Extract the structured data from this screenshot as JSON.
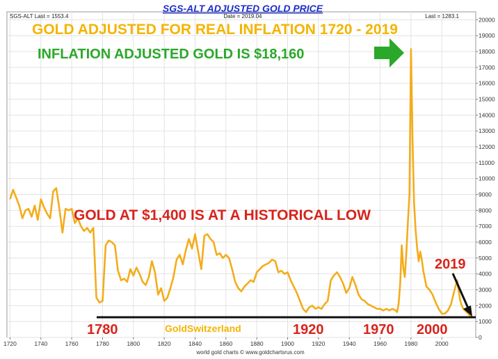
{
  "header": {
    "title": "SGS-ALT ADJUSTED  GOLD PRICE",
    "left_info": "SGS-ALT Last = 1553.4",
    "center_info": "Date = 2019.04",
    "right_info": "Last = 1283.1"
  },
  "annotations": {
    "headline": "GOLD ADJUSTED FOR REAL INFLATION  1720 - 2019",
    "peak_note": "INFLATION ADJUSTED GOLD IS $18,160",
    "low_note": "GOLD AT $1,400 IS AT A HISTORICAL LOW",
    "year_2019": "2019",
    "brand": "GoldSwitzerland",
    "years": [
      "1780",
      "1920",
      "1970",
      "2000"
    ]
  },
  "footer": "world gold charts © www.goldchartsrus.com",
  "colors": {
    "line": "#f4ac1b",
    "title": "#1c2ec9",
    "green": "#2aa82a",
    "red": "#d8231b",
    "baseline": "#111111"
  },
  "chart_data": {
    "type": "line",
    "title": "SGS-ALT ADJUSTED  GOLD PRICE",
    "xlabel": "",
    "ylabel": "",
    "xlim": [
      1718,
      2022
    ],
    "ylim": [
      0,
      20500
    ],
    "x_ticks": [
      1720,
      1740,
      1760,
      1780,
      1800,
      1820,
      1840,
      1860,
      1880,
      1900,
      1920,
      1940,
      1960,
      1980,
      2000
    ],
    "y_ticks": [
      0,
      1000,
      2000,
      3000,
      4000,
      5000,
      6000,
      7000,
      8000,
      9000,
      10000,
      11000,
      12000,
      13000,
      14000,
      15000,
      16000,
      17000,
      18000,
      19000,
      20000
    ],
    "y_axis_side": "right",
    "grid": true,
    "series": [
      {
        "x": [
          1720,
          1722,
          1724,
          1726,
          1728,
          1730,
          1732,
          1734,
          1736,
          1738,
          1740,
          1742,
          1744,
          1746,
          1748,
          1750,
          1752,
          1754,
          1756,
          1758,
          1760,
          1762,
          1764,
          1766,
          1768,
          1770,
          1772,
          1774,
          1776,
          1778,
          1780,
          1782,
          1784,
          1786,
          1788,
          1790,
          1792,
          1794,
          1796,
          1798,
          1800,
          1802,
          1804,
          1806,
          1808,
          1810,
          1812,
          1814,
          1816,
          1818,
          1820,
          1822,
          1824,
          1826,
          1828,
          1830,
          1832,
          1834,
          1836,
          1838,
          1840,
          1842,
          1844,
          1846,
          1848,
          1850,
          1852,
          1854,
          1856,
          1858,
          1860,
          1862,
          1864,
          1866,
          1868,
          1870,
          1872,
          1874,
          1876,
          1878,
          1880,
          1882,
          1884,
          1886,
          1888,
          1890,
          1892,
          1894,
          1896,
          1898,
          1900,
          1902,
          1904,
          1906,
          1908,
          1910,
          1912,
          1914,
          1916,
          1918,
          1920,
          1922,
          1924,
          1926,
          1928,
          1930,
          1932,
          1934,
          1936,
          1938,
          1940,
          1942,
          1944,
          1946,
          1948,
          1950,
          1952,
          1954,
          1956,
          1958,
          1960,
          1962,
          1964,
          1966,
          1968,
          1970,
          1971,
          1972,
          1973,
          1974,
          1975,
          1976,
          1977,
          1978,
          1979,
          1980,
          1981,
          1982,
          1983,
          1984,
          1985,
          1986,
          1987,
          1988,
          1990,
          1992,
          1994,
          1996,
          1998,
          2000,
          2002,
          2004,
          2006,
          2008,
          2010,
          2011,
          2012,
          2013,
          2014,
          2016,
          2018,
          2019
        ],
        "y": [
          8700,
          9300,
          8800,
          8300,
          7500,
          8000,
          8100,
          7600,
          8300,
          7400,
          8700,
          8200,
          7800,
          7500,
          9200,
          9400,
          8100,
          6600,
          8100,
          8000,
          8100,
          7200,
          7500,
          7000,
          6700,
          6900,
          6600,
          6900,
          2500,
          2200,
          2300,
          5800,
          6100,
          6000,
          5800,
          4200,
          3600,
          3700,
          3500,
          4300,
          3900,
          4400,
          4000,
          3500,
          3300,
          3800,
          4800,
          4100,
          2700,
          3100,
          2300,
          2500,
          3100,
          3800,
          4900,
          5200,
          4600,
          5500,
          6200,
          5600,
          6500,
          5400,
          4300,
          6400,
          6500,
          6200,
          6000,
          5200,
          5300,
          5000,
          5200,
          5000,
          4300,
          3500,
          3100,
          2900,
          3200,
          3400,
          3600,
          3500,
          4100,
          4300,
          4500,
          4600,
          4700,
          4900,
          4800,
          4100,
          4200,
          4000,
          4100,
          3600,
          3200,
          2800,
          2300,
          1800,
          1600,
          1900,
          2000,
          1800,
          1900,
          1800,
          2100,
          2300,
          3600,
          3900,
          4100,
          3800,
          3400,
          2800,
          3100,
          3800,
          3300,
          2700,
          2400,
          2300,
          2100,
          2000,
          1900,
          1800,
          1800,
          1700,
          1800,
          1700,
          1800,
          1700,
          1600,
          2100,
          3400,
          5800,
          4400,
          3800,
          5300,
          7200,
          9000,
          18160,
          12500,
          8500,
          6800,
          5600,
          4800,
          5400,
          4900,
          4200,
          3200,
          3000,
          2700,
          2200,
          1800,
          1500,
          1500,
          1700,
          2100,
          2900,
          3600,
          2900,
          2300,
          2000,
          1800,
          1600,
          1400,
          1300
        ]
      }
    ]
  }
}
